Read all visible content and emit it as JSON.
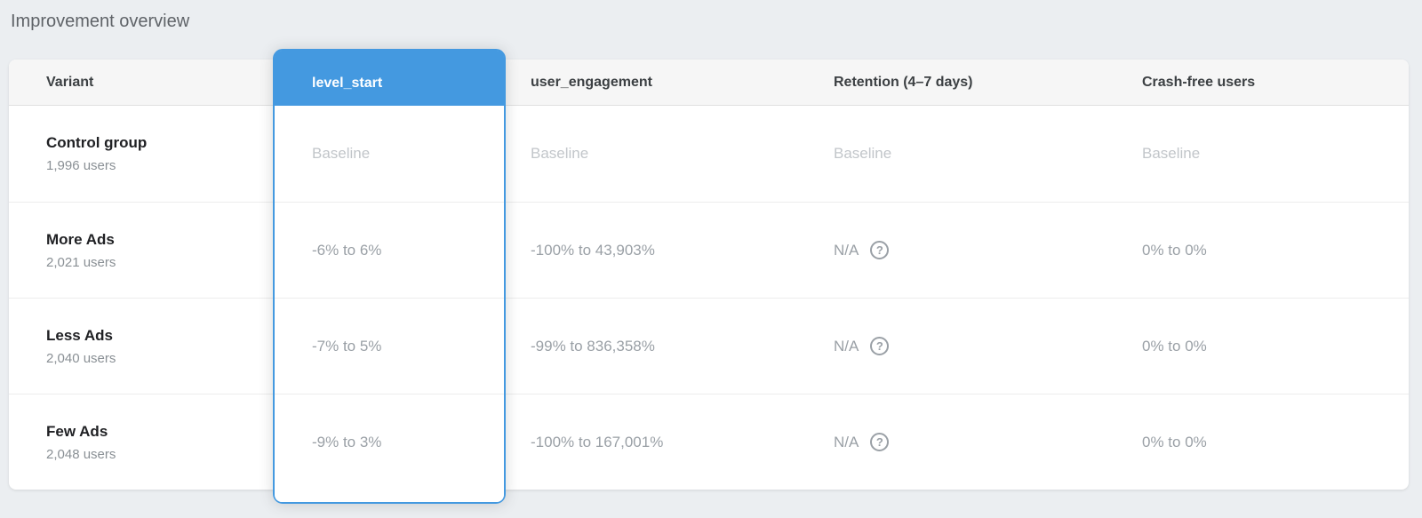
{
  "page": {
    "title": "Improvement overview"
  },
  "colors": {
    "accent_blue": "#4499e0"
  },
  "icons": {
    "help": "?"
  },
  "table": {
    "columns": [
      {
        "label": "Variant",
        "selected": false
      },
      {
        "label": "level_start",
        "selected": true
      },
      {
        "label": "user_engagement",
        "selected": false
      },
      {
        "label": "Retention (4–7 days)",
        "selected": false
      },
      {
        "label": "Crash-free users",
        "selected": false
      }
    ],
    "rows": [
      {
        "name": "Control group",
        "users": "1,996 users",
        "is_baseline": true,
        "values": {
          "level_start": "Baseline",
          "user_engagement": "Baseline",
          "retention": "Baseline",
          "crash_free": "Baseline"
        }
      },
      {
        "name": "More Ads",
        "users": "2,021 users",
        "is_baseline": false,
        "values": {
          "level_start": "-6% to 6%",
          "user_engagement": "-100% to 43,903%",
          "retention": "N/A",
          "crash_free": "0% to 0%"
        }
      },
      {
        "name": "Less Ads",
        "users": "2,040 users",
        "is_baseline": false,
        "values": {
          "level_start": "-7% to 5%",
          "user_engagement": "-99% to 836,358%",
          "retention": "N/A",
          "crash_free": "0% to 0%"
        }
      },
      {
        "name": "Few Ads",
        "users": "2,048 users",
        "is_baseline": false,
        "values": {
          "level_start": "-9% to 3%",
          "user_engagement": "-100% to 167,001%",
          "retention": "N/A",
          "crash_free": "0% to 0%"
        }
      }
    ]
  }
}
